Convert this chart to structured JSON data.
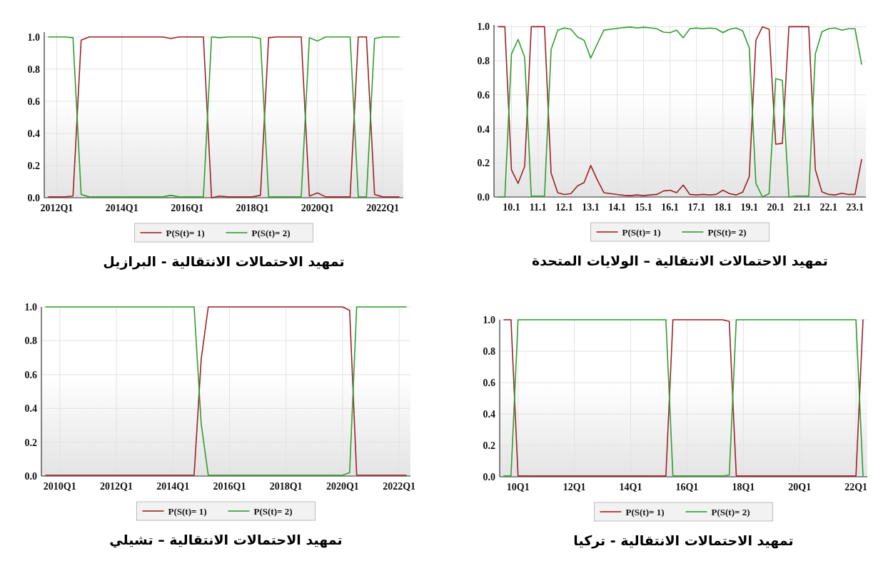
{
  "chart_data": [
    {
      "type": "line",
      "title": "تمهيد الاحتمالات الانتقالية - البرازيل",
      "legend": "bottom",
      "grid": true,
      "ylim": [
        0,
        1.03
      ],
      "yticks": [
        {
          "value": 0,
          "label": "0.0"
        },
        {
          "value": 0.2,
          "label": "0.2"
        },
        {
          "value": 0.4,
          "label": "0.4"
        },
        {
          "value": 0.6,
          "label": "0.6"
        },
        {
          "value": 0.8,
          "label": "0.8"
        },
        {
          "value": 1,
          "label": "1.0"
        }
      ],
      "categories": [
        null,
        "2012Q1",
        null,
        null,
        null,
        null,
        null,
        null,
        null,
        "2014Q1",
        null,
        null,
        null,
        null,
        null,
        null,
        null,
        "2016Q1",
        null,
        null,
        null,
        null,
        null,
        null,
        null,
        "2018Q1",
        null,
        null,
        null,
        null,
        null,
        null,
        null,
        "2020Q1",
        null,
        null,
        null,
        null,
        null,
        null,
        null,
        "2022Q1",
        null,
        null
      ],
      "series": [
        {
          "name": "P(S(t)= 1)",
          "color": "#9b2226",
          "values": [
            0.005,
            0.005,
            0.005,
            0.01,
            0.98,
            1,
            1,
            1,
            1,
            1,
            1,
            1,
            1,
            1,
            1,
            0.99,
            1,
            1,
            1,
            1,
            0,
            0.01,
            0.005,
            0.005,
            0.005,
            0.005,
            0.015,
            0.995,
            1,
            1,
            1,
            1,
            0.01,
            0.03,
            0.005,
            0.005,
            0.005,
            0.005,
            1,
            1,
            0.02,
            0.005,
            0.005,
            0.005
          ]
        },
        {
          "name": "P(S(t)= 2)",
          "color": "#2e9e2e",
          "values": [
            1,
            1,
            1,
            0.995,
            0.02,
            0.005,
            0.005,
            0.005,
            0.005,
            0.005,
            0.005,
            0.005,
            0.005,
            0.005,
            0.005,
            0.015,
            0.005,
            0.005,
            0.005,
            0.005,
            1,
            0.995,
            1,
            1,
            1,
            1,
            0.99,
            0.005,
            0.005,
            0.005,
            0.005,
            0.005,
            0.995,
            0.975,
            1,
            1,
            1,
            1,
            0.005,
            0.005,
            0.99,
            1,
            1,
            1
          ]
        }
      ]
    },
    {
      "type": "line",
      "title": "تمهيد الاحتمالات الانتقالية – الولايات المتحدة",
      "legend": "bottom",
      "grid": true,
      "ylim": [
        0,
        1.01
      ],
      "yticks": [
        {
          "value": 0,
          "label": "0.0"
        },
        {
          "value": 0.2,
          "label": "0.2"
        },
        {
          "value": 0.4,
          "label": "0.4"
        },
        {
          "value": 0.6,
          "label": "0.6"
        },
        {
          "value": 0.8,
          "label": "0.8"
        },
        {
          "value": 1,
          "label": "1.0"
        }
      ],
      "categories": [
        null,
        null,
        "10.1",
        null,
        null,
        null,
        "11.1",
        null,
        null,
        null,
        "12.1",
        null,
        null,
        null,
        "13.1",
        null,
        null,
        null,
        "14.1",
        null,
        null,
        null,
        "15.1",
        null,
        null,
        null,
        "16.1",
        null,
        null,
        null,
        "17.1",
        null,
        null,
        null,
        "18.1",
        null,
        null,
        null,
        "19.1",
        null,
        null,
        null,
        "20.1",
        null,
        null,
        null,
        "21.1",
        null,
        null,
        null,
        "22.1",
        null,
        null,
        null,
        "23.1",
        null
      ],
      "series": [
        {
          "name": "P(S(t)= 1)",
          "color": "#9b2226",
          "values": [
            1,
            1,
            0.16,
            0.08,
            0.18,
            1,
            1,
            1,
            0.14,
            0.025,
            0.015,
            0.02,
            0.065,
            0.085,
            0.185,
            0.1,
            0.025,
            0.02,
            0.015,
            0.01,
            0.008,
            0.012,
            0.008,
            0.012,
            0.015,
            0.035,
            0.04,
            0.025,
            0.07,
            0.015,
            0.012,
            0.015,
            0.012,
            0.015,
            0.04,
            0.02,
            0.012,
            0.028,
            0.12,
            0.92,
            1,
            0.985,
            0.31,
            0.315,
            1,
            1,
            1,
            1,
            0.16,
            0.03,
            0.015,
            0.012,
            0.022,
            0.015,
            0.015,
            0.22
          ]
        },
        {
          "name": "P(S(t)= 2)",
          "color": "#2e9e2e",
          "values": [
            0,
            0,
            0.84,
            0.925,
            0.82,
            0.005,
            0.005,
            0.005,
            0.865,
            0.98,
            0.992,
            0.985,
            0.94,
            0.92,
            0.815,
            0.9,
            0.98,
            0.985,
            0.99,
            0.995,
            0.998,
            0.992,
            0.997,
            0.993,
            0.988,
            0.968,
            0.965,
            0.98,
            0.935,
            0.988,
            0.992,
            0.988,
            0.992,
            0.988,
            0.965,
            0.985,
            0.992,
            0.975,
            0.875,
            0.08,
            0,
            0.02,
            0.695,
            0.685,
            0,
            0.005,
            0.005,
            0.005,
            0.84,
            0.97,
            0.988,
            0.992,
            0.98,
            0.988,
            0.988,
            0.78
          ]
        }
      ]
    },
    {
      "type": "line",
      "title": "تمهيد الاحتمالات الانتقالية – تشيلي",
      "legend": "bottom",
      "grid": true,
      "ylim": [
        0,
        1.0
      ],
      "yticks": [
        {
          "value": 0,
          "label": "0.0"
        },
        {
          "value": 0.2,
          "label": "0.2"
        },
        {
          "value": 0.4,
          "label": "0.4"
        },
        {
          "value": 0.6,
          "label": "0.6"
        },
        {
          "value": 0.8,
          "label": "0.8"
        },
        {
          "value": 1,
          "label": "1.0"
        }
      ],
      "categories": [
        null,
        null,
        "2010Q1",
        null,
        null,
        null,
        null,
        null,
        null,
        null,
        "2012Q1",
        null,
        null,
        null,
        null,
        null,
        null,
        null,
        "2014Q1",
        null,
        null,
        null,
        null,
        null,
        null,
        null,
        "2016Q1",
        null,
        null,
        null,
        null,
        null,
        null,
        null,
        "2018Q1",
        null,
        null,
        null,
        null,
        null,
        null,
        null,
        "2020Q1",
        null,
        null,
        null,
        null,
        null,
        null,
        null,
        "2022Q1",
        null
      ],
      "series": [
        {
          "name": "P(S(t)= 1)",
          "color": "#9b2226",
          "values": [
            0.005,
            0.005,
            0.005,
            0.005,
            0.005,
            0.005,
            0.005,
            0.005,
            0.005,
            0.005,
            0.005,
            0.005,
            0.005,
            0.005,
            0.005,
            0.005,
            0.005,
            0.005,
            0.005,
            0.005,
            0.005,
            0.005,
            0.69,
            1,
            1,
            1,
            1,
            1,
            1,
            1,
            1,
            1,
            1,
            1,
            1,
            1,
            1,
            1,
            1,
            1,
            1,
            1,
            1,
            0.98,
            0.005,
            0.005,
            0.005,
            0.005,
            0.005,
            0.005,
            0.005,
            0.005
          ]
        },
        {
          "name": "P(S(t)= 2)",
          "color": "#2e9e2e",
          "values": [
            1,
            1,
            1,
            1,
            1,
            1,
            1,
            1,
            1,
            1,
            1,
            1,
            1,
            1,
            1,
            1,
            1,
            1,
            1,
            1,
            1,
            1,
            0.31,
            0.005,
            0.005,
            0.005,
            0.005,
            0.005,
            0.005,
            0.005,
            0.005,
            0.005,
            0.005,
            0.005,
            0.005,
            0.005,
            0.005,
            0.005,
            0.005,
            0.005,
            0.005,
            0.005,
            0.005,
            0.02,
            1,
            1,
            1,
            1,
            1,
            1,
            1,
            1
          ]
        }
      ]
    },
    {
      "type": "line",
      "title": "تمهيد الاحتمالات الانتقالية - تركيا",
      "legend": "bottom",
      "grid": true,
      "ylim": [
        0,
        1.0
      ],
      "yticks": [
        {
          "value": 0,
          "label": "0.0"
        },
        {
          "value": 0.2,
          "label": "0.2"
        },
        {
          "value": 0.4,
          "label": "0.4"
        },
        {
          "value": 0.6,
          "label": "0.6"
        },
        {
          "value": 0.8,
          "label": "0.8"
        },
        {
          "value": 1,
          "label": "1.0"
        }
      ],
      "categories": [
        null,
        null,
        "10Q1",
        null,
        null,
        null,
        null,
        null,
        null,
        null,
        "12Q1",
        null,
        null,
        null,
        null,
        null,
        null,
        null,
        "14Q1",
        null,
        null,
        null,
        null,
        null,
        null,
        null,
        "16Q1",
        null,
        null,
        null,
        null,
        null,
        null,
        null,
        "18Q1",
        null,
        null,
        null,
        null,
        null,
        null,
        null,
        "20Q1",
        null,
        null,
        null,
        null,
        null,
        null,
        null,
        "22Q1",
        null
      ],
      "series": [
        {
          "name": "P(S(t)= 1)",
          "color": "#9b2226",
          "values": [
            1,
            1,
            0.005,
            0.005,
            0.005,
            0.005,
            0.005,
            0.005,
            0.005,
            0.005,
            0.005,
            0.005,
            0.005,
            0.005,
            0.005,
            0.005,
            0.005,
            0.005,
            0.005,
            0.005,
            0.005,
            0.005,
            0.005,
            0.005,
            1,
            1,
            1,
            1,
            1,
            1,
            1,
            1,
            0.99,
            0.005,
            0.005,
            0.005,
            0.005,
            0.005,
            0.005,
            0.005,
            0.005,
            0.005,
            0.005,
            0.005,
            0.005,
            0.005,
            0.005,
            0.005,
            0.005,
            0.005,
            0.005,
            1
          ]
        },
        {
          "name": "P(S(t)= 2)",
          "color": "#2e9e2e",
          "values": [
            0.005,
            0.005,
            1,
            1,
            1,
            1,
            1,
            1,
            1,
            1,
            1,
            1,
            1,
            1,
            1,
            1,
            1,
            1,
            1,
            1,
            1,
            1,
            1,
            1,
            0.005,
            0.005,
            0.005,
            0.005,
            0.005,
            0.005,
            0.005,
            0.005,
            0.01,
            1,
            1,
            1,
            1,
            1,
            1,
            1,
            1,
            1,
            1,
            1,
            1,
            1,
            1,
            1,
            1,
            1,
            1,
            0.005
          ]
        }
      ]
    }
  ]
}
